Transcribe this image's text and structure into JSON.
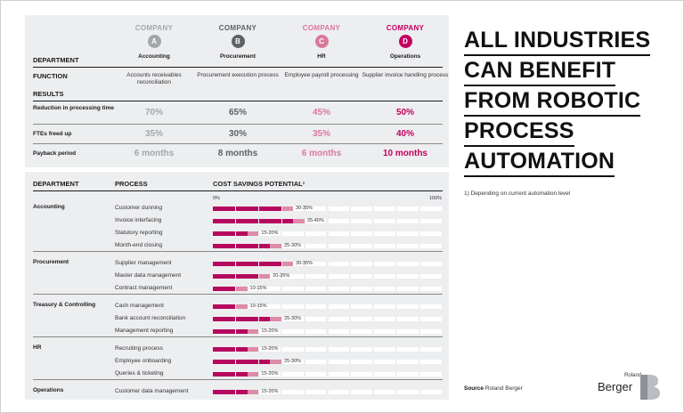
{
  "headline": [
    "ALL INDUSTRIES",
    "CAN BENEFIT",
    "FROM ROBOTIC",
    "PROCESS",
    "AUTOMATION"
  ],
  "footnote": "1) Depending on current automation level",
  "source": {
    "label": "Source",
    "text": "Roland Berger"
  },
  "logo": {
    "small": "Roland",
    "big": "Berger",
    "icon": "roland-berger-b-logo"
  },
  "colors": {
    "company_a": "#a3a6ab",
    "company_b": "#5f6166",
    "company_c": "#d9799b",
    "company_d": "#c4005f",
    "bar_dark": "#b5085e",
    "bar_light": "#de8aa9",
    "panel": "#edeef0"
  },
  "top_table": {
    "department_label": "DEPARTMENT",
    "function_label": "FUNCTION",
    "results_label": "RESULTS",
    "companies": [
      {
        "label": "COMPANY",
        "letter": "A",
        "department": "Accounting",
        "function": "Accounts receivables reconciliation",
        "reduction": "70%",
        "ftes": "35%",
        "payback": "6 months"
      },
      {
        "label": "COMPANY",
        "letter": "B",
        "department": "Procurement",
        "function": "Procurement execution process",
        "reduction": "65%",
        "ftes": "30%",
        "payback": "8 months"
      },
      {
        "label": "COMPANY",
        "letter": "C",
        "department": "HR",
        "function": "Employee payroll processing",
        "reduction": "45%",
        "ftes": "35%",
        "payback": "6 months"
      },
      {
        "label": "COMPANY",
        "letter": "D",
        "department": "Operations",
        "function": "Supplier invoice handling process",
        "reduction": "50%",
        "ftes": "40%",
        "payback": "10 months"
      }
    ],
    "result_rows": [
      "Reduction in processing time",
      "FTEs freed up",
      "Payback period"
    ]
  },
  "bottom_table": {
    "headers": {
      "department": "DEPARTMENT",
      "process": "PROCESS",
      "savings": "COST SAVINGS POTENTIAL¹"
    },
    "axis": {
      "min_label": "0%",
      "max_label": "100%"
    }
  },
  "chart_data": {
    "type": "bar",
    "title": "COST SAVINGS POTENTIAL¹",
    "xlabel": "",
    "ylabel": "",
    "xlim": [
      0,
      100
    ],
    "unit": "%",
    "groups": [
      {
        "department": "Accounting",
        "processes": [
          {
            "name": "Customer dunning",
            "low": 30,
            "high": 35,
            "label": "30-35%"
          },
          {
            "name": "Invoice interfacing",
            "low": 35,
            "high": 40,
            "label": "35-40%"
          },
          {
            "name": "Statutory reporting",
            "low": 15,
            "high": 20,
            "label": "15-20%"
          },
          {
            "name": "Month-end closing",
            "low": 25,
            "high": 30,
            "label": "25-30%"
          }
        ]
      },
      {
        "department": "Procurement",
        "processes": [
          {
            "name": "Supplier management",
            "low": 30,
            "high": 35,
            "label": "30-35%"
          },
          {
            "name": "Master data management",
            "low": 20,
            "high": 25,
            "label": "20-25%"
          },
          {
            "name": "Contract management",
            "low": 10,
            "high": 15,
            "label": "10-15%"
          }
        ]
      },
      {
        "department": "Treasury & Controlling",
        "processes": [
          {
            "name": "Cash management",
            "low": 10,
            "high": 15,
            "label": "10-15%"
          },
          {
            "name": "Bank account reconciliation",
            "low": 25,
            "high": 30,
            "label": "25-30%"
          },
          {
            "name": "Management reporting",
            "low": 15,
            "high": 20,
            "label": "15-20%"
          }
        ]
      },
      {
        "department": "HR",
        "processes": [
          {
            "name": "Recruiting process",
            "low": 15,
            "high": 20,
            "label": "15-20%"
          },
          {
            "name": "Employee onboarding",
            "low": 25,
            "high": 30,
            "label": "25-30%"
          },
          {
            "name": "Queries & ticketing",
            "low": 15,
            "high": 20,
            "label": "15-20%"
          }
        ]
      },
      {
        "department": "Operations",
        "processes": [
          {
            "name": "Customer data management",
            "low": 15,
            "high": 20,
            "label": "15-20%"
          }
        ]
      }
    ]
  }
}
